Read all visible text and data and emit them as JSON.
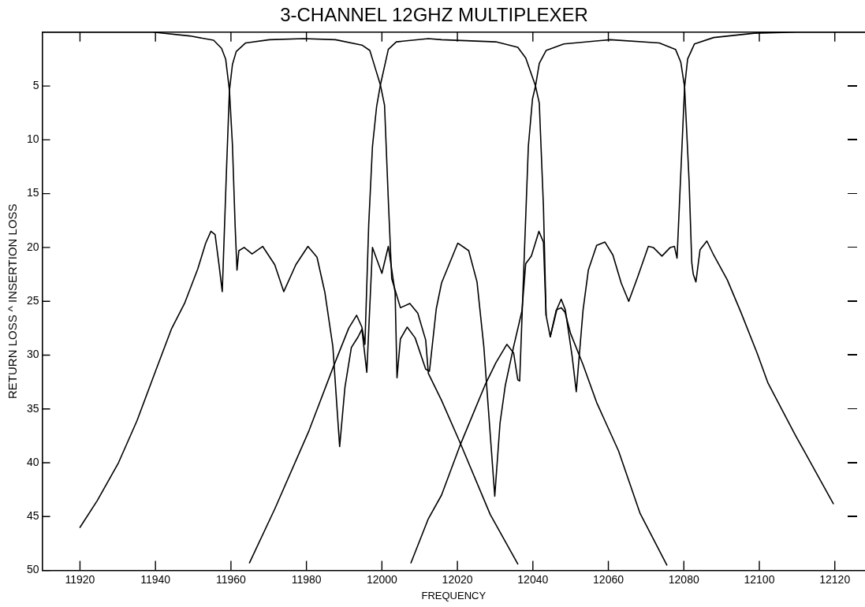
{
  "chart_data": {
    "type": "line",
    "title": "3-CHANNEL 12GHZ MULTIPLEXER",
    "xlabel": "FREQUENCY",
    "ylabel": "RETURN LOSS ^ INSERTION LOSS",
    "xlim": [
      11910,
      12128
    ],
    "xticks": [
      11920,
      11940,
      11960,
      11980,
      12000,
      12020,
      12040,
      12060,
      12080,
      12100,
      12120
    ],
    "ylim": [
      50,
      0
    ],
    "yticks": [
      {
        "value": 0,
        "label": null
      },
      5,
      10,
      15,
      20,
      25,
      30,
      35,
      40,
      45,
      50
    ],
    "marker": "none",
    "line_style": "solid",
    "series": [
      {
        "color": "#000000",
        "x": [
          11920,
          11924.6,
          11930.2,
          11935.1,
          11940,
          11944.2,
          11947.7,
          11951.2,
          11953.3,
          11954.7,
          11955.8,
          11956.8,
          11957.7,
          11958.8,
          11959.6,
          11960.4,
          11961.4,
          11963.9,
          11970.2,
          11979.3,
          11987.7,
          11994.7,
          11996.8,
          11998.2,
          11999.6,
          12000.7,
          12001.7,
          12002.6,
          12004.9,
          12007.4,
          12009.5,
          12011.6,
          12012.3,
          12015.8,
          12020.8,
          12028.7,
          12036
        ],
        "values": [
          46.0,
          43.5,
          40.0,
          36.1,
          31.5,
          27.6,
          25.2,
          22.0,
          19.6,
          18.5,
          18.8,
          21.5,
          24.1,
          13.0,
          5.4,
          3.0,
          1.8,
          1.0,
          0.7,
          0.6,
          0.7,
          1.2,
          1.7,
          3.3,
          4.9,
          6.8,
          15.6,
          22.9,
          25.6,
          25.2,
          26.1,
          28.6,
          31.7,
          34.2,
          38.2,
          44.8,
          49.4
        ]
      },
      {
        "color": "#000000",
        "x": [
          11910,
          11925,
          11939.3,
          11949.1,
          11955.4,
          11957.5,
          11958.6,
          11959.6,
          11960.4,
          11961.1,
          11961.6,
          11962.1,
          11963.5,
          11965.6,
          11968.4,
          11971.6,
          11974,
          11977.2,
          11980.4,
          11982.8,
          11984.9,
          11987,
          11988.8,
          11990.2,
          11991.9,
          11993.7,
          11994.7,
          11996,
          11997.5,
          12000,
          12001.7,
          12003.5,
          12004,
          12004.9,
          12006.7,
          12008.8,
          12011.6,
          12012.6,
          12014.4,
          12015.8,
          12020.1,
          12023,
          12025.2,
          12027,
          12029.9,
          12031.3,
          12032.7,
          12034.9,
          12037.1,
          12038.1,
          12039.6,
          12041.6,
          12042.8,
          12043.5
        ],
        "values": [
          0,
          0,
          0,
          0.35,
          0.75,
          1.5,
          2.5,
          5.4,
          10.5,
          17.9,
          22.1,
          20.3,
          20,
          20.6,
          19.9,
          21.6,
          24.1,
          21.6,
          19.9,
          20.9,
          24.2,
          29.2,
          38.5,
          33,
          29.3,
          28.3,
          27.6,
          31.6,
          20,
          22.4,
          19.9,
          24.2,
          32.1,
          28.5,
          27.4,
          28.4,
          31.3,
          31.5,
          25.7,
          23.3,
          19.6,
          20.3,
          23.2,
          29.2,
          43.1,
          36.3,
          32.8,
          29.2,
          25.9,
          21.5,
          20.8,
          18.5,
          19.5,
          26.3
        ]
      },
      {
        "color": "#000000",
        "x": [
          11964.9,
          11971.6,
          11980.7,
          11987,
          11991.2,
          11993.3,
          11994.7,
          11995.5,
          11996.5,
          11997.5,
          11998.6,
          11999.6,
          12001.7,
          12003.8,
          12012.3,
          12015.8,
          12030.2,
          12036,
          12038.1,
          12040.7,
          12041.7,
          12042.8,
          12043.5,
          12044.6,
          12046.4,
          12047.5,
          12048.6,
          12050.4,
          12051.5,
          12053.3,
          12054.7,
          12056.9,
          12059.1,
          12061.2,
          12063.4,
          12065.4,
          12067.7,
          12070.6,
          12071.9,
          12074.2,
          12076.4,
          12077.5,
          12078.2,
          12080.2,
          12081,
          12082.8,
          12087.9,
          12098.7,
          12110,
          12128
        ],
        "values": [
          49.3,
          44.3,
          37,
          31.2,
          27.5,
          26.3,
          27.4,
          29,
          17.9,
          10.6,
          6.9,
          4.9,
          1.6,
          0.9,
          0.6,
          0.7,
          0.9,
          1.4,
          2.4,
          5,
          6.6,
          16.2,
          26.3,
          28.3,
          25.7,
          24.8,
          25.8,
          30.1,
          33.4,
          25.8,
          22.1,
          19.8,
          19.5,
          20.7,
          23.3,
          25,
          22.8,
          19.9,
          20,
          20.8,
          20,
          19.9,
          21,
          5.1,
          2.5,
          1.1,
          0.5,
          0.1,
          0,
          0
        ]
      },
      {
        "color": "#000000",
        "x": [
          12007.7,
          12012.3,
          12015.8,
          12020.8,
          12027.3,
          12030.2,
          12033.1,
          12034.9,
          12036,
          12036.5,
          12037.4,
          12038.8,
          12039.9,
          12040.7,
          12041.7,
          12043.5,
          12048.2,
          12060.5,
          12073.5,
          12077.8,
          12079.2,
          12080.2,
          12081.4,
          12082.1,
          12082.5,
          12083.2,
          12084.3,
          12086.1,
          12087.9,
          12091.5,
          12095.1,
          12099.4,
          12102.3,
          12109.5,
          12119.6
        ],
        "values": [
          49.3,
          45.2,
          43,
          38.3,
          32.8,
          30.7,
          29,
          29.8,
          32.3,
          32.4,
          23.8,
          10.6,
          6.2,
          5,
          2.9,
          1.7,
          1.1,
          0.7,
          1,
          1.6,
          2.8,
          5.1,
          13.9,
          21.4,
          22.5,
          23.2,
          20.2,
          19.4,
          20.7,
          23,
          26,
          29.8,
          32.6,
          37.4,
          43.8
        ]
      },
      {
        "color": "#000000",
        "x": [
          12044.6,
          12046.2,
          12047.5,
          12048.5,
          12050,
          12053.3,
          12056.9,
          12062.7,
          12068.4,
          12075.5
        ],
        "values": [
          28.3,
          25.8,
          25.6,
          26,
          28,
          30.9,
          34.4,
          38.9,
          44.7,
          49.5
        ]
      }
    ]
  }
}
